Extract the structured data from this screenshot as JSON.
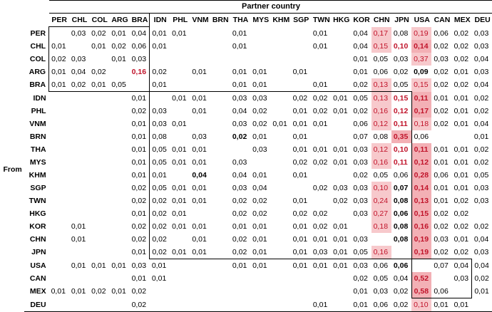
{
  "header": {
    "title": "Partner country",
    "row_group_label": "From"
  },
  "columns": [
    "PER",
    "CHL",
    "COL",
    "ARG",
    "BRA",
    "IDN",
    "PHL",
    "VNM",
    "BRN",
    "THA",
    "MYS",
    "KHM",
    "SGP",
    "TWN",
    "HKG",
    "KOR",
    "CHN",
    "JPN",
    "USA",
    "CAN",
    "MEX",
    "DEU"
  ],
  "rows": [
    {
      "label": "PER",
      "cells": [
        "",
        "0,03",
        "0,02",
        "0,01",
        "0,04",
        "0,01",
        "0,01",
        "",
        "",
        "0,01",
        "",
        "",
        "",
        "0,01",
        "",
        "0,04",
        "0,17",
        "0,08",
        "0,19",
        "0,06",
        "0,02",
        "0,03"
      ]
    },
    {
      "label": "CHL",
      "cells": [
        "0,01",
        "",
        "0,01",
        "0,02",
        "0,06",
        "0,01",
        "",
        "",
        "",
        "0,01",
        "",
        "",
        "",
        "0,01",
        "",
        "0,04",
        "0,15",
        "0,10",
        "0,14",
        "0,02",
        "0,02",
        "0,03"
      ]
    },
    {
      "label": "COL",
      "cells": [
        "0,02",
        "0,03",
        "",
        "0,01",
        "0,03",
        "",
        "",
        "",
        "",
        "",
        "",
        "",
        "",
        "",
        "",
        "0,01",
        "0,05",
        "0,03",
        "0,37",
        "0,03",
        "0,02",
        "0,04"
      ]
    },
    {
      "label": "ARG",
      "cells": [
        "0,01",
        "0,04",
        "0,02",
        "",
        "0,16",
        "0,02",
        "",
        "0,01",
        "",
        "0,01",
        "0,01",
        "",
        "0,01",
        "",
        "",
        "0,01",
        "0,06",
        "0,02",
        "0,09",
        "0,02",
        "0,01",
        "0,03"
      ]
    },
    {
      "label": "BRA",
      "cells": [
        "0,01",
        "0,02",
        "0,01",
        "0,05",
        "",
        "0,01",
        "",
        "",
        "",
        "0,01",
        "0,01",
        "",
        "",
        "0,01",
        "",
        "0,02",
        "0,13",
        "0,05",
        "0,15",
        "0,02",
        "0,02",
        "0,04"
      ]
    },
    {
      "label": "IDN",
      "cells": [
        "",
        "",
        "",
        "",
        "0,01",
        "",
        "0,01",
        "0,01",
        "",
        "0,03",
        "0,03",
        "",
        "0,02",
        "0,02",
        "0,01",
        "0,05",
        "0,13",
        "0,15",
        "0,11",
        "0,01",
        "0,01",
        "0,02"
      ]
    },
    {
      "label": "PHL",
      "cells": [
        "",
        "",
        "",
        "",
        "0,02",
        "0,03",
        "",
        "0,01",
        "",
        "0,04",
        "0,02",
        "",
        "0,01",
        "0,02",
        "0,01",
        "0,02",
        "0,16",
        "0,12",
        "0,17",
        "0,02",
        "0,01",
        "0,02"
      ]
    },
    {
      "label": "VNM",
      "cells": [
        "",
        "",
        "",
        "",
        "0,01",
        "0,03",
        "0,01",
        "",
        "",
        "0,03",
        "0,02",
        "0,01",
        "0,01",
        "0,01",
        "",
        "0,06",
        "0,12",
        "0,11",
        "0,18",
        "0,02",
        "0,01",
        "0,04"
      ]
    },
    {
      "label": "BRN",
      "cells": [
        "",
        "",
        "",
        "",
        "0,01",
        "0,08",
        "",
        "0,03",
        "",
        "0,02",
        "0,01",
        "",
        "0,01",
        "",
        "",
        "0,07",
        "0,08",
        "0,35",
        "0,06",
        "",
        "",
        "0,01"
      ]
    },
    {
      "label": "THA",
      "cells": [
        "",
        "",
        "",
        "",
        "0,01",
        "0,05",
        "0,01",
        "0,01",
        "",
        "",
        "0,03",
        "",
        "0,01",
        "0,01",
        "0,01",
        "0,03",
        "0,12",
        "0,10",
        "0,11",
        "0,01",
        "0,01",
        "0,02"
      ]
    },
    {
      "label": "MYS",
      "cells": [
        "",
        "",
        "",
        "",
        "0,01",
        "0,05",
        "0,01",
        "0,01",
        "",
        "0,03",
        "",
        "",
        "0,02",
        "0,02",
        "0,01",
        "0,03",
        "0,16",
        "0,11",
        "0,12",
        "0,01",
        "0,01",
        "0,02"
      ]
    },
    {
      "label": "KHM",
      "cells": [
        "",
        "",
        "",
        "",
        "0,01",
        "0,01",
        "",
        "0,04",
        "",
        "0,04",
        "0,01",
        "",
        "0,01",
        "",
        "",
        "0,02",
        "0,05",
        "0,06",
        "0,28",
        "0,06",
        "0,01",
        "0,05"
      ]
    },
    {
      "label": "SGP",
      "cells": [
        "",
        "",
        "",
        "",
        "0,02",
        "0,05",
        "0,01",
        "0,01",
        "",
        "0,03",
        "0,04",
        "",
        "",
        "0,02",
        "0,03",
        "0,03",
        "0,10",
        "0,07",
        "0,14",
        "0,01",
        "0,01",
        "0,03"
      ]
    },
    {
      "label": "TWN",
      "cells": [
        "",
        "",
        "",
        "",
        "0,02",
        "0,02",
        "0,01",
        "0,01",
        "",
        "0,02",
        "0,02",
        "",
        "0,01",
        "",
        "0,02",
        "0,03",
        "0,24",
        "0,08",
        "0,13",
        "0,01",
        "0,02",
        "0,03"
      ]
    },
    {
      "label": "HKG",
      "cells": [
        "",
        "",
        "",
        "",
        "0,01",
        "0,02",
        "0,01",
        "",
        "",
        "0,02",
        "0,02",
        "",
        "0,02",
        "0,02",
        "",
        "0,03",
        "0,27",
        "0,06",
        "0,15",
        "0,02",
        "0,02",
        ""
      ]
    },
    {
      "label": "KOR",
      "cells": [
        "",
        "0,01",
        "",
        "",
        "0,02",
        "0,02",
        "0,01",
        "0,01",
        "",
        "0,01",
        "0,01",
        "",
        "0,01",
        "0,02",
        "0,01",
        "",
        "0,18",
        "0,08",
        "0,16",
        "0,02",
        "0,02",
        "0,02"
      ]
    },
    {
      "label": "CHN",
      "cells": [
        "",
        "0,01",
        "",
        "",
        "0,02",
        "0,02",
        "",
        "0,01",
        "",
        "0,02",
        "0,01",
        "",
        "0,01",
        "0,01",
        "0,01",
        "0,03",
        "",
        "0,08",
        "0,19",
        "0,03",
        "0,01",
        "0,04"
      ]
    },
    {
      "label": "JPN",
      "cells": [
        "",
        "",
        "",
        "",
        "0,01",
        "0,02",
        "0,01",
        "0,01",
        "",
        "0,02",
        "0,01",
        "",
        "0,01",
        "0,03",
        "0,01",
        "0,05",
        "0,16",
        "",
        "0,19",
        "0,02",
        "0,02",
        "0,03"
      ]
    },
    {
      "label": "USA",
      "cells": [
        "",
        "0,01",
        "0,01",
        "0,01",
        "0,03",
        "0,01",
        "",
        "",
        "",
        "0,01",
        "0,01",
        "",
        "0,01",
        "0,01",
        "0,01",
        "0,03",
        "0,06",
        "0,06",
        "",
        "0,07",
        "0,04",
        "0,04"
      ]
    },
    {
      "label": "CAN",
      "cells": [
        "",
        "",
        "",
        "",
        "0,01",
        "0,01",
        "",
        "",
        "",
        "",
        "",
        "",
        "",
        "",
        "",
        "0,02",
        "0,05",
        "0,04",
        "0,52",
        "",
        "0,03",
        "0,02"
      ]
    },
    {
      "label": "MEX",
      "cells": [
        "0,01",
        "0,01",
        "0,02",
        "0,01",
        "0,02",
        "",
        "",
        "",
        "",
        "",
        "",
        "",
        "",
        "",
        "",
        "0,01",
        "0,03",
        "0,02",
        "0,58",
        "0,06",
        "",
        "0,01"
      ]
    },
    {
      "label": "DEU",
      "cells": [
        "",
        "",
        "",
        "",
        "0,02",
        "",
        "",
        "",
        "",
        "",
        "",
        "",
        "",
        "0,01",
        "",
        "0,01",
        "0,06",
        "0,02",
        "0,10",
        "0,01",
        "0,01",
        ""
      ]
    }
  ],
  "highlight": {
    "light": [
      [
        0,
        16
      ],
      [
        0,
        18
      ],
      [
        1,
        16
      ],
      [
        1,
        18
      ],
      [
        2,
        18
      ],
      [
        4,
        16
      ],
      [
        4,
        18
      ],
      [
        5,
        16
      ],
      [
        5,
        18
      ],
      [
        6,
        16
      ],
      [
        6,
        18
      ],
      [
        7,
        16
      ],
      [
        7,
        18
      ],
      [
        8,
        17
      ],
      [
        9,
        16
      ],
      [
        9,
        18
      ],
      [
        10,
        16
      ],
      [
        10,
        18
      ],
      [
        11,
        18
      ],
      [
        12,
        16
      ],
      [
        12,
        18
      ],
      [
        13,
        16
      ],
      [
        13,
        18
      ],
      [
        14,
        16
      ],
      [
        14,
        18
      ],
      [
        15,
        16
      ],
      [
        15,
        18
      ],
      [
        16,
        18
      ],
      [
        17,
        16
      ],
      [
        17,
        18
      ],
      [
        19,
        18
      ],
      [
        20,
        18
      ],
      [
        21,
        18
      ]
    ],
    "bold": [
      [
        1,
        17
      ],
      [
        1,
        18
      ],
      [
        3,
        4
      ],
      [
        3,
        18
      ],
      [
        5,
        17
      ],
      [
        5,
        18
      ],
      [
        6,
        17
      ],
      [
        6,
        18
      ],
      [
        7,
        17
      ],
      [
        8,
        9
      ],
      [
        8,
        11
      ],
      [
        8,
        17
      ],
      [
        9,
        17
      ],
      [
        9,
        18
      ],
      [
        10,
        17
      ],
      [
        10,
        18
      ],
      [
        11,
        7
      ],
      [
        11,
        18
      ],
      [
        12,
        17
      ],
      [
        12,
        18
      ],
      [
        13,
        17
      ],
      [
        13,
        18
      ],
      [
        14,
        17
      ],
      [
        14,
        18
      ],
      [
        15,
        17
      ],
      [
        15,
        18
      ],
      [
        16,
        17
      ],
      [
        16,
        18
      ],
      [
        17,
        18
      ],
      [
        18,
        17
      ],
      [
        19,
        18
      ],
      [
        20,
        18
      ]
    ],
    "boldred": [
      [
        1,
        17
      ],
      [
        1,
        18
      ],
      [
        3,
        4
      ],
      [
        5,
        17
      ],
      [
        5,
        18
      ],
      [
        6,
        17
      ],
      [
        6,
        18
      ],
      [
        7,
        17
      ],
      [
        8,
        17
      ],
      [
        9,
        17
      ],
      [
        9,
        18
      ],
      [
        10,
        17
      ],
      [
        10,
        18
      ],
      [
        11,
        18
      ],
      [
        12,
        18
      ],
      [
        13,
        18
      ],
      [
        14,
        18
      ],
      [
        15,
        18
      ],
      [
        16,
        18
      ],
      [
        17,
        18
      ],
      [
        19,
        18
      ],
      [
        20,
        18
      ]
    ],
    "accent_color": "#c0132a",
    "fill_color": "#f7c9cc"
  }
}
